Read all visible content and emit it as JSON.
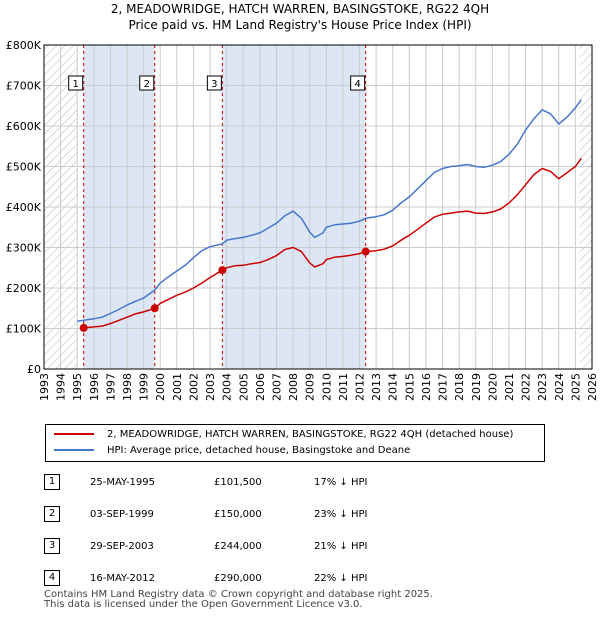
{
  "header": {
    "title_line1": "2, MEADOWRIDGE, HATCH WARREN, BASINGSTOKE, RG22 4QH",
    "title_line2": "Price paid vs. HM Land Registry's House Price Index (HPI)"
  },
  "colors": {
    "property": "#cc0000",
    "hpi": "#4477cc",
    "shade": "#dde6f5",
    "grid": "#cccccc"
  },
  "chart_data": {
    "type": "line",
    "xlim": [
      1993,
      2026
    ],
    "ylim": [
      0,
      800000
    ],
    "y_ticks": [
      {
        "value": 0,
        "label": "£0"
      },
      {
        "value": 100000,
        "label": "£100K"
      },
      {
        "value": 200000,
        "label": "£200K"
      },
      {
        "value": 300000,
        "label": "£300K"
      },
      {
        "value": 400000,
        "label": "£400K"
      },
      {
        "value": 500000,
        "label": "£500K"
      },
      {
        "value": 600000,
        "label": "£600K"
      },
      {
        "value": 700000,
        "label": "£700K"
      },
      {
        "value": 800000,
        "label": "£800K"
      }
    ],
    "x_ticks": [
      "1993",
      "1994",
      "1995",
      "1996",
      "1997",
      "1998",
      "1999",
      "2000",
      "2001",
      "2002",
      "2003",
      "2004",
      "2005",
      "2006",
      "2007",
      "2008",
      "2009",
      "2010",
      "2011",
      "2012",
      "2013",
      "2014",
      "2015",
      "2016",
      "2017",
      "2018",
      "2019",
      "2020",
      "2021",
      "2022",
      "2023",
      "2024",
      "2025",
      "2026"
    ],
    "grid": true,
    "hatched_ranges": [
      [
        1993,
        1995.0
      ],
      [
        2025.25,
        2026
      ]
    ],
    "shaded_ranges": [
      [
        1995.39,
        1999.67
      ],
      [
        2003.74,
        2012.37
      ]
    ],
    "series": [
      {
        "name": "2, MEADOWRIDGE, HATCH WARREN, BASINGSTOKE, RG22 4QH (detached house)",
        "color": "#cc0000",
        "points": [
          [
            1995.39,
            101500
          ],
          [
            1996.0,
            104000
          ],
          [
            1996.5,
            106000
          ],
          [
            1997.0,
            112000
          ],
          [
            1997.5,
            120000
          ],
          [
            1998.0,
            128000
          ],
          [
            1998.5,
            136000
          ],
          [
            1999.0,
            141000
          ],
          [
            1999.67,
            150000
          ],
          [
            2000.0,
            162000
          ],
          [
            2000.5,
            172000
          ],
          [
            2001.0,
            182000
          ],
          [
            2001.5,
            190000
          ],
          [
            2002.0,
            200000
          ],
          [
            2002.5,
            212000
          ],
          [
            2003.0,
            226000
          ],
          [
            2003.74,
            244000
          ],
          [
            2004.0,
            250000
          ],
          [
            2004.5,
            255000
          ],
          [
            2005.0,
            256000
          ],
          [
            2005.5,
            260000
          ],
          [
            2006.0,
            263000
          ],
          [
            2006.5,
            270000
          ],
          [
            2007.0,
            280000
          ],
          [
            2007.5,
            295000
          ],
          [
            2008.0,
            300000
          ],
          [
            2008.5,
            290000
          ],
          [
            2009.0,
            262000
          ],
          [
            2009.3,
            252000
          ],
          [
            2009.8,
            260000
          ],
          [
            2010.0,
            270000
          ],
          [
            2010.5,
            276000
          ],
          [
            2011.0,
            278000
          ],
          [
            2011.5,
            281000
          ],
          [
            2012.0,
            285000
          ],
          [
            2012.37,
            290000
          ],
          [
            2013.0,
            292000
          ],
          [
            2013.5,
            296000
          ],
          [
            2014.0,
            304000
          ],
          [
            2014.5,
            318000
          ],
          [
            2015.0,
            330000
          ],
          [
            2015.5,
            345000
          ],
          [
            2016.0,
            360000
          ],
          [
            2016.5,
            375000
          ],
          [
            2017.0,
            382000
          ],
          [
            2017.5,
            385000
          ],
          [
            2018.0,
            388000
          ],
          [
            2018.5,
            390000
          ],
          [
            2019.0,
            385000
          ],
          [
            2019.5,
            384000
          ],
          [
            2020.0,
            388000
          ],
          [
            2020.5,
            395000
          ],
          [
            2021.0,
            410000
          ],
          [
            2021.5,
            430000
          ],
          [
            2022.0,
            455000
          ],
          [
            2022.5,
            480000
          ],
          [
            2023.0,
            495000
          ],
          [
            2023.5,
            488000
          ],
          [
            2024.0,
            470000
          ],
          [
            2024.5,
            485000
          ],
          [
            2025.0,
            500000
          ],
          [
            2025.35,
            520000
          ]
        ]
      },
      {
        "name": "HPI: Average price, detached house, Basingstoke and Deane",
        "color": "#4477cc",
        "points": [
          [
            1995.0,
            118000
          ],
          [
            1995.5,
            121000
          ],
          [
            1996.0,
            124000
          ],
          [
            1996.5,
            128000
          ],
          [
            1997.0,
            137000
          ],
          [
            1997.5,
            147000
          ],
          [
            1998.0,
            158000
          ],
          [
            1998.5,
            167000
          ],
          [
            1999.0,
            175000
          ],
          [
            1999.67,
            195000
          ],
          [
            2000.0,
            212000
          ],
          [
            2000.5,
            228000
          ],
          [
            2001.0,
            242000
          ],
          [
            2001.5,
            256000
          ],
          [
            2002.0,
            275000
          ],
          [
            2002.5,
            292000
          ],
          [
            2003.0,
            302000
          ],
          [
            2003.74,
            309000
          ],
          [
            2004.0,
            318000
          ],
          [
            2004.5,
            322000
          ],
          [
            2005.0,
            325000
          ],
          [
            2005.5,
            330000
          ],
          [
            2006.0,
            336000
          ],
          [
            2006.5,
            348000
          ],
          [
            2007.0,
            360000
          ],
          [
            2007.5,
            378000
          ],
          [
            2008.0,
            390000
          ],
          [
            2008.5,
            372000
          ],
          [
            2009.0,
            338000
          ],
          [
            2009.3,
            325000
          ],
          [
            2009.8,
            336000
          ],
          [
            2010.0,
            350000
          ],
          [
            2010.5,
            356000
          ],
          [
            2011.0,
            358000
          ],
          [
            2011.5,
            360000
          ],
          [
            2012.0,
            365000
          ],
          [
            2012.37,
            372000
          ],
          [
            2013.0,
            376000
          ],
          [
            2013.5,
            381000
          ],
          [
            2014.0,
            392000
          ],
          [
            2014.5,
            410000
          ],
          [
            2015.0,
            425000
          ],
          [
            2015.5,
            445000
          ],
          [
            2016.0,
            465000
          ],
          [
            2016.5,
            485000
          ],
          [
            2017.0,
            495000
          ],
          [
            2017.5,
            500000
          ],
          [
            2018.0,
            502000
          ],
          [
            2018.5,
            505000
          ],
          [
            2019.0,
            500000
          ],
          [
            2019.5,
            498000
          ],
          [
            2020.0,
            503000
          ],
          [
            2020.5,
            512000
          ],
          [
            2021.0,
            530000
          ],
          [
            2021.5,
            555000
          ],
          [
            2022.0,
            590000
          ],
          [
            2022.5,
            618000
          ],
          [
            2023.0,
            640000
          ],
          [
            2023.5,
            630000
          ],
          [
            2024.0,
            605000
          ],
          [
            2024.5,
            622000
          ],
          [
            2025.0,
            645000
          ],
          [
            2025.35,
            665000
          ]
        ]
      }
    ],
    "sales": [
      {
        "label": "1",
        "x": 1995.39,
        "price": 101500
      },
      {
        "label": "2",
        "x": 1999.67,
        "price": 150000
      },
      {
        "label": "3",
        "x": 2003.74,
        "price": 244000
      },
      {
        "label": "4",
        "x": 2012.37,
        "price": 290000
      }
    ]
  },
  "legend": {
    "property_label": "2, MEADOWRIDGE, HATCH WARREN, BASINGSTOKE, RG22 4QH (detached house)",
    "hpi_label": "HPI: Average price, detached house, Basingstoke and Deane"
  },
  "sales_table": [
    {
      "num": "1",
      "date": "25-MAY-1995",
      "price": "£101,500",
      "hpi": "17% ↓ HPI"
    },
    {
      "num": "2",
      "date": "03-SEP-1999",
      "price": "£150,000",
      "hpi": "23% ↓ HPI"
    },
    {
      "num": "3",
      "date": "29-SEP-2003",
      "price": "£244,000",
      "hpi": "21% ↓ HPI"
    },
    {
      "num": "4",
      "date": "16-MAY-2012",
      "price": "£290,000",
      "hpi": "22% ↓ HPI"
    }
  ],
  "footer": {
    "line1": "Contains HM Land Registry data © Crown copyright and database right 2025.",
    "line2": "This data is licensed under the Open Government Licence v3.0."
  }
}
